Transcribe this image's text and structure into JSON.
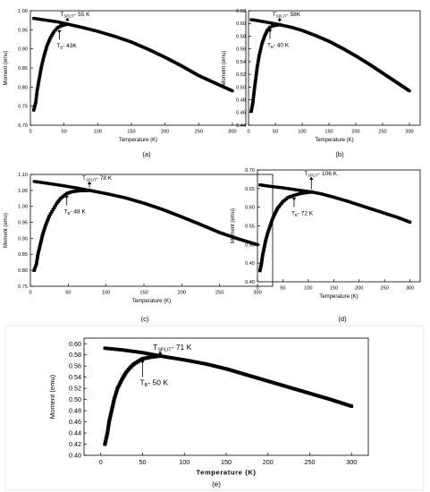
{
  "chart_data": [
    {
      "type": "scatter",
      "panel_label": "(a)",
      "xlabel": "Temperature (K)",
      "ylabel": "Moment (emu)",
      "xlim": [
        0,
        320
      ],
      "ylim": [
        0.7,
        1.0
      ],
      "xticks": [
        "0",
        "50",
        "100",
        "150",
        "200",
        "250",
        "300"
      ],
      "yticks": [
        "0.70",
        "0.75",
        "0.80",
        "0.85",
        "0.90",
        "0.95",
        "1.00"
      ],
      "annotations": {
        "split": {
          "sub": "SPLIT",
          "value": "- 55 K",
          "x": 55,
          "y": 0.965
        },
        "b": {
          "sub": "B",
          "value": "- 43K",
          "x": 43,
          "y": 0.955
        }
      },
      "series": [
        {
          "x": [
            5,
            20,
            40,
            55,
            80,
            100,
            125,
            150,
            175,
            200,
            225,
            250,
            275,
            300
          ],
          "y": [
            0.98,
            0.976,
            0.971,
            0.965,
            0.955,
            0.946,
            0.933,
            0.918,
            0.899,
            0.878,
            0.855,
            0.83,
            0.81,
            0.79
          ]
        },
        {
          "x": [
            5,
            8,
            10,
            13,
            16,
            20,
            25,
            30,
            35,
            40,
            45,
            50,
            55
          ],
          "y": [
            0.74,
            0.76,
            0.79,
            0.82,
            0.85,
            0.88,
            0.91,
            0.93,
            0.945,
            0.955,
            0.96,
            0.963,
            0.965
          ]
        }
      ]
    },
    {
      "type": "scatter",
      "panel_label": "(b)",
      "xlabel": "Temperature (K)",
      "ylabel": "Moment (emu)",
      "xlim": [
        0,
        320
      ],
      "ylim": [
        0.44,
        0.62
      ],
      "xticks": [
        "0",
        "50",
        "100",
        "150",
        "200",
        "250",
        "300"
      ],
      "yticks": [
        "0.44",
        "0.46",
        "0.48",
        "0.50",
        "0.52",
        "0.54",
        "0.56",
        "0.58",
        "0.60",
        "0.62"
      ],
      "annotations": {
        "split": {
          "sub": "SPLIT",
          "value": "- 58K",
          "x": 58,
          "y": 0.598
        },
        "b": {
          "sub": "B",
          "value": "- 40 K",
          "x": 40,
          "y": 0.594
        }
      },
      "series": [
        {
          "x": [
            5,
            20,
            40,
            58,
            80,
            100,
            125,
            150,
            175,
            200,
            225,
            250,
            275,
            300
          ],
          "y": [
            0.606,
            0.604,
            0.601,
            0.598,
            0.594,
            0.589,
            0.581,
            0.572,
            0.561,
            0.549,
            0.536,
            0.522,
            0.508,
            0.494
          ]
        },
        {
          "x": [
            5,
            8,
            10,
            13,
            16,
            20,
            25,
            30,
            35,
            40,
            45,
            50,
            58
          ],
          "y": [
            0.462,
            0.475,
            0.49,
            0.51,
            0.53,
            0.55,
            0.568,
            0.58,
            0.589,
            0.594,
            0.596,
            0.597,
            0.598
          ]
        }
      ]
    },
    {
      "type": "scatter",
      "panel_label": "(c)",
      "xlabel": "Temperature (K)",
      "ylabel": "Moment (emu)",
      "xlim": [
        0,
        320
      ],
      "ylim": [
        0.75,
        1.1
      ],
      "xticks": [
        "0",
        "50",
        "100",
        "150",
        "200",
        "250",
        "300"
      ],
      "yticks": [
        "0.75",
        "0.80",
        "0.85",
        "0.90",
        "0.95",
        "1.00",
        "1.05",
        "1.10"
      ],
      "annotations": {
        "split": {
          "sub": "SPLIT",
          "value": "- 78 K",
          "x": 78,
          "y": 1.05
        },
        "b": {
          "sub": "B",
          "value": "- 48 K",
          "x": 48,
          "y": 1.04
        }
      },
      "series": [
        {
          "x": [
            5,
            20,
            40,
            60,
            78,
            100,
            125,
            150,
            175,
            200,
            225,
            250,
            275,
            300
          ],
          "y": [
            1.078,
            1.073,
            1.066,
            1.058,
            1.05,
            1.04,
            1.027,
            1.01,
            0.99,
            0.967,
            0.943,
            0.918,
            0.898,
            0.88
          ]
        },
        {
          "x": [
            5,
            8,
            10,
            13,
            16,
            20,
            25,
            30,
            35,
            40,
            48,
            55,
            65,
            78
          ],
          "y": [
            0.8,
            0.82,
            0.85,
            0.88,
            0.91,
            0.94,
            0.97,
            0.99,
            1.01,
            1.025,
            1.04,
            1.046,
            1.049,
            1.05
          ]
        }
      ]
    },
    {
      "type": "scatter",
      "panel_label": "(d)",
      "xlabel": "Temperature (K)",
      "ylabel": "Moment (emu)",
      "xlim": [
        0,
        320
      ],
      "ylim": [
        0.4,
        0.7
      ],
      "xticks": [
        "0",
        "50",
        "100",
        "150",
        "200",
        "250",
        "300"
      ],
      "yticks": [
        "0.40",
        "0.45",
        "0.50",
        "0.55",
        "0.60",
        "0.65",
        "0.70"
      ],
      "annotations": {
        "split": {
          "sub": "SPLIT",
          "value": "- 106 K",
          "x": 106,
          "y": 0.641
        },
        "b": {
          "sub": "B",
          "value": "- 72 K",
          "x": 72,
          "y": 0.632
        }
      },
      "series": [
        {
          "x": [
            5,
            25,
            50,
            75,
            106,
            125,
            150,
            175,
            200,
            225,
            250,
            275,
            300
          ],
          "y": [
            0.66,
            0.656,
            0.652,
            0.647,
            0.641,
            0.636,
            0.627,
            0.617,
            0.606,
            0.595,
            0.584,
            0.573,
            0.56
          ]
        },
        {
          "x": [
            5,
            8,
            10,
            13,
            16,
            20,
            25,
            30,
            35,
            40,
            50,
            60,
            72,
            85,
            106
          ],
          "y": [
            0.43,
            0.45,
            0.47,
            0.49,
            0.51,
            0.53,
            0.55,
            0.57,
            0.585,
            0.598,
            0.615,
            0.626,
            0.632,
            0.637,
            0.641
          ]
        }
      ]
    },
    {
      "type": "scatter",
      "panel_label": "(e)",
      "xlabel": "Temperature (K)",
      "ylabel": "Moment (emu)",
      "xlim": [
        -20,
        320
      ],
      "ylim": [
        0.4,
        0.61
      ],
      "xticks": [
        "0",
        "50",
        "100",
        "150",
        "200",
        "250",
        "300"
      ],
      "yticks": [
        "0.40",
        "0.42",
        "0.44",
        "0.46",
        "0.48",
        "0.50",
        "0.52",
        "0.54",
        "0.56",
        "0.58",
        "0.60"
      ],
      "annotations": {
        "split": {
          "sub": "SPLIT",
          "value": "- 71 K",
          "x": 71,
          "y": 0.578
        },
        "b": {
          "sub": "B",
          "value": "- 50 K",
          "x": 50,
          "y": 0.574
        }
      },
      "series": [
        {
          "x": [
            5,
            25,
            50,
            71,
            100,
            125,
            150,
            175,
            200,
            225,
            250,
            275,
            300
          ],
          "y": [
            0.592,
            0.589,
            0.584,
            0.578,
            0.571,
            0.564,
            0.555,
            0.544,
            0.533,
            0.522,
            0.511,
            0.5,
            0.488
          ]
        },
        {
          "x": [
            5,
            8,
            10,
            13,
            16,
            20,
            25,
            30,
            35,
            40,
            50,
            60,
            71
          ],
          "y": [
            0.42,
            0.44,
            0.46,
            0.48,
            0.5,
            0.52,
            0.535,
            0.548,
            0.557,
            0.564,
            0.573,
            0.576,
            0.578
          ]
        }
      ]
    }
  ]
}
